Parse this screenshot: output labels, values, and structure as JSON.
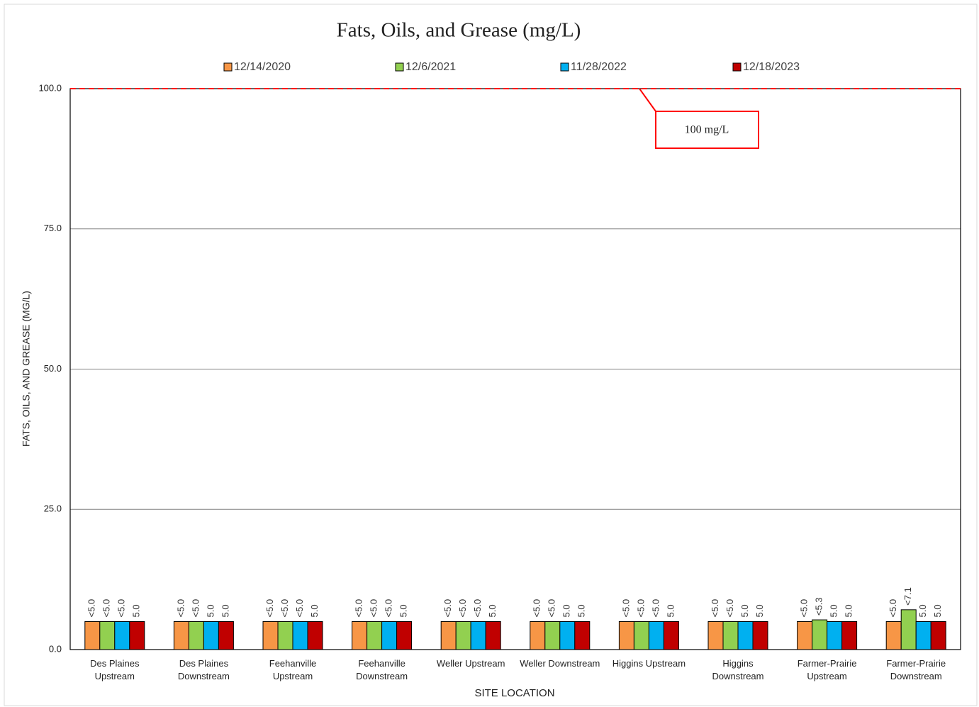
{
  "chart_data": {
    "type": "bar",
    "title": "Fats, Oils, and Grease (mg/L)",
    "x_label": "SITE LOCATION",
    "y_label": "FATS, OILS, AND GREASE (MG/L)",
    "categories": [
      "Des Plaines Upstream",
      "Des Plaines Downstream",
      "Feehanville Upstream",
      "Feehanville Downstream",
      "Weller Upstream",
      "Weller Downstream",
      "Higgins Upstream",
      "Higgins Downstream",
      "Farmer-Prairie Upstream",
      "Farmer-Prairie Downstream"
    ],
    "series": [
      {
        "name": "12/14/2020",
        "color": "#f79646",
        "values": [
          5.0,
          5.0,
          5.0,
          5.0,
          5.0,
          5.0,
          5.0,
          5.0,
          5.0,
          5.0
        ],
        "value_labels": [
          "<5.0",
          "<5.0",
          "<5.0",
          "<5.0",
          "<5.0",
          "<5.0",
          "<5.0",
          "<5.0",
          "<5.0",
          "<5.0"
        ]
      },
      {
        "name": "12/6/2021",
        "color": "#92d050",
        "values": [
          5.0,
          5.0,
          5.0,
          5.0,
          5.0,
          5.0,
          5.0,
          5.0,
          5.3,
          7.1
        ],
        "value_labels": [
          "<5.0",
          "<5.0",
          "<5.0",
          "<5.0",
          "<5.0",
          "<5.0",
          "<5.0",
          "<5.0",
          "<5.3",
          "<7.1"
        ]
      },
      {
        "name": "11/28/2022",
        "color": "#00b0f0",
        "values": [
          5.0,
          5.0,
          5.0,
          5.0,
          5.0,
          5.0,
          5.0,
          5.0,
          5.0,
          5.0
        ],
        "value_labels": [
          "<5.0",
          "5.0",
          "<5.0",
          "<5.0",
          "<5.0",
          "5.0",
          "<5.0",
          "5.0",
          "5.0",
          "5.0"
        ]
      },
      {
        "name": "12/18/2023",
        "color": "#c00000",
        "values": [
          5.0,
          5.0,
          5.0,
          5.0,
          5.0,
          5.0,
          5.0,
          5.0,
          5.0,
          5.0
        ],
        "value_labels": [
          "5.0",
          "5.0",
          "5.0",
          "5.0",
          "5.0",
          "5.0",
          "5.0",
          "5.0",
          "5.0",
          "5.0"
        ]
      }
    ],
    "ylim": [
      0,
      100
    ],
    "yticks": [
      {
        "value": 0,
        "label": "0.0"
      },
      {
        "value": 25,
        "label": "25.0"
      },
      {
        "value": 50,
        "label": "50.0"
      },
      {
        "value": 75,
        "label": "75.0"
      },
      {
        "value": 100,
        "label": "100.0"
      }
    ],
    "grid": true,
    "legend": "top",
    "reference_line": {
      "value": 100,
      "label": "100 mg/L",
      "color": "#ff0000"
    }
  }
}
